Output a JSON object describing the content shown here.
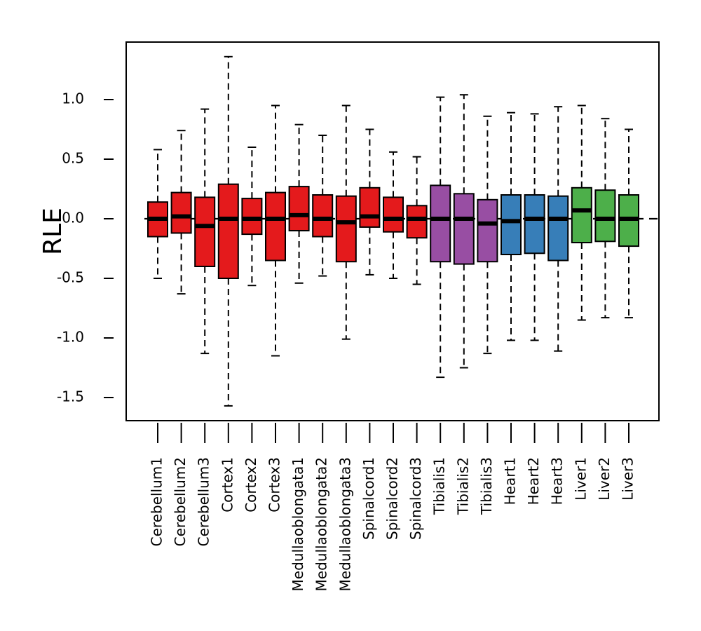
{
  "chart_data": {
    "type": "box",
    "ylabel": "RLE",
    "ylim": [
      -1.7,
      1.48
    ],
    "yticks": [
      "1.0",
      "0.5",
      "0.0",
      "-0.5",
      "-1.0",
      "-1.5"
    ],
    "ytick_values": [
      1.0,
      0.5,
      0.0,
      -0.5,
      -1.0,
      -1.5
    ],
    "reference_line": 0.0,
    "colors": {
      "red": "#E41A1C",
      "purple": "#984EA3",
      "blue": "#377EB8",
      "green": "#4DAF4A"
    },
    "categories": [
      "Cerebellum1",
      "Cerebellum2",
      "Cerebellum3",
      "Cortex1",
      "Cortex2",
      "Cortex3",
      "Medullaoblongata1",
      "Medullaoblongata2",
      "Medullaoblongata3",
      "Spinalcord1",
      "Spinalcord2",
      "Spinalcord3",
      "Tibialis1",
      "Tibialis2",
      "Tibialis3",
      "Heart1",
      "Heart2",
      "Heart3",
      "Liver1",
      "Liver2",
      "Liver3"
    ],
    "boxes": [
      {
        "min": -0.5,
        "q1": -0.15,
        "median": 0.0,
        "q3": 0.14,
        "max": 0.58,
        "color": "red"
      },
      {
        "min": -0.63,
        "q1": -0.12,
        "median": 0.02,
        "q3": 0.22,
        "max": 0.74,
        "color": "red"
      },
      {
        "min": -1.13,
        "q1": -0.4,
        "median": -0.06,
        "q3": 0.18,
        "max": 0.92,
        "color": "red"
      },
      {
        "min": -1.57,
        "q1": -0.5,
        "median": 0.0,
        "q3": 0.29,
        "max": 1.36,
        "color": "red"
      },
      {
        "min": -0.56,
        "q1": -0.13,
        "median": 0.0,
        "q3": 0.17,
        "max": 0.6,
        "color": "red"
      },
      {
        "min": -1.15,
        "q1": -0.35,
        "median": 0.0,
        "q3": 0.22,
        "max": 0.95,
        "color": "red"
      },
      {
        "min": -0.54,
        "q1": -0.1,
        "median": 0.03,
        "q3": 0.27,
        "max": 0.79,
        "color": "red"
      },
      {
        "min": -0.48,
        "q1": -0.15,
        "median": 0.0,
        "q3": 0.2,
        "max": 0.7,
        "color": "red"
      },
      {
        "min": -1.01,
        "q1": -0.36,
        "median": -0.03,
        "q3": 0.19,
        "max": 0.95,
        "color": "red"
      },
      {
        "min": -0.47,
        "q1": -0.07,
        "median": 0.02,
        "q3": 0.26,
        "max": 0.75,
        "color": "red"
      },
      {
        "min": -0.5,
        "q1": -0.11,
        "median": 0.0,
        "q3": 0.18,
        "max": 0.56,
        "color": "red"
      },
      {
        "min": -0.55,
        "q1": -0.16,
        "median": 0.0,
        "q3": 0.11,
        "max": 0.52,
        "color": "red"
      },
      {
        "min": -1.33,
        "q1": -0.36,
        "median": 0.0,
        "q3": 0.28,
        "max": 1.02,
        "color": "purple"
      },
      {
        "min": -1.25,
        "q1": -0.38,
        "median": 0.0,
        "q3": 0.21,
        "max": 1.04,
        "color": "purple"
      },
      {
        "min": -1.13,
        "q1": -0.36,
        "median": -0.04,
        "q3": 0.16,
        "max": 0.86,
        "color": "purple"
      },
      {
        "min": -1.02,
        "q1": -0.3,
        "median": -0.02,
        "q3": 0.2,
        "max": 0.89,
        "color": "blue"
      },
      {
        "min": -1.02,
        "q1": -0.29,
        "median": 0.0,
        "q3": 0.2,
        "max": 0.88,
        "color": "blue"
      },
      {
        "min": -1.11,
        "q1": -0.35,
        "median": 0.0,
        "q3": 0.19,
        "max": 0.94,
        "color": "blue"
      },
      {
        "min": -0.85,
        "q1": -0.2,
        "median": 0.07,
        "q3": 0.26,
        "max": 0.95,
        "color": "green"
      },
      {
        "min": -0.83,
        "q1": -0.19,
        "median": 0.0,
        "q3": 0.24,
        "max": 0.84,
        "color": "green"
      },
      {
        "min": -0.83,
        "q1": -0.23,
        "median": 0.0,
        "q3": 0.2,
        "max": 0.75,
        "color": "green"
      }
    ]
  }
}
